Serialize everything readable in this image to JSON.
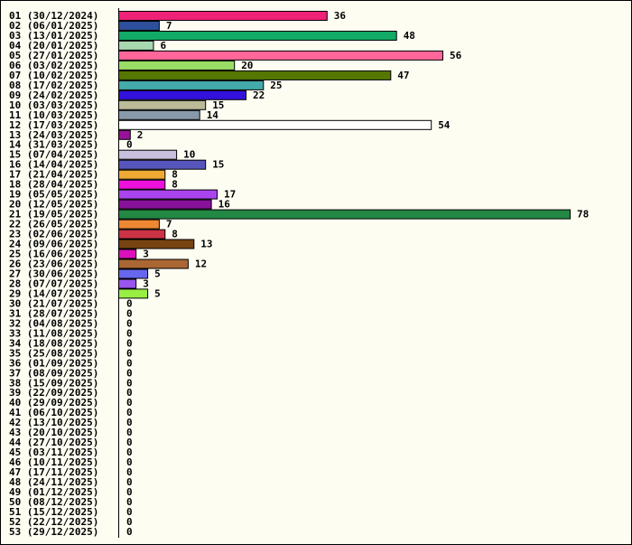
{
  "chart_data": {
    "type": "bar",
    "orientation": "horizontal",
    "title": "",
    "xlabel": "",
    "ylabel": "",
    "grid": false,
    "legend": "none",
    "xlim": [
      0,
      78
    ],
    "categories": [
      "01 (30/12/2024)",
      "02 (06/01/2025)",
      "03 (13/01/2025)",
      "04 (20/01/2025)",
      "05 (27/01/2025)",
      "06 (03/02/2025)",
      "07 (10/02/2025)",
      "08 (17/02/2025)",
      "09 (24/02/2025)",
      "10 (03/03/2025)",
      "11 (10/03/2025)",
      "12 (17/03/2025)",
      "13 (24/03/2025)",
      "14 (31/03/2025)",
      "15 (07/04/2025)",
      "16 (14/04/2025)",
      "17 (21/04/2025)",
      "18 (28/04/2025)",
      "19 (05/05/2025)",
      "20 (12/05/2025)",
      "21 (19/05/2025)",
      "22 (26/05/2025)",
      "23 (02/06/2025)",
      "24 (09/06/2025)",
      "25 (16/06/2025)",
      "26 (23/06/2025)",
      "27 (30/06/2025)",
      "28 (07/07/2025)",
      "29 (14/07/2025)",
      "30 (21/07/2025)",
      "31 (28/07/2025)",
      "32 (04/08/2025)",
      "33 (11/08/2025)",
      "34 (18/08/2025)",
      "35 (25/08/2025)",
      "36 (01/09/2025)",
      "37 (08/09/2025)",
      "38 (15/09/2025)",
      "39 (22/09/2025)",
      "40 (29/09/2025)",
      "41 (06/10/2025)",
      "42 (13/10/2025)",
      "43 (20/10/2025)",
      "44 (27/10/2025)",
      "45 (03/11/2025)",
      "46 (10/11/2025)",
      "47 (17/11/2025)",
      "48 (24/11/2025)",
      "49 (01/12/2025)",
      "50 (08/12/2025)",
      "51 (15/12/2025)",
      "52 (22/12/2025)",
      "53 (29/12/2025)"
    ],
    "values": [
      36,
      7,
      48,
      6,
      56,
      20,
      47,
      25,
      22,
      15,
      14,
      54,
      2,
      0,
      10,
      15,
      8,
      8,
      17,
      16,
      78,
      7,
      8,
      13,
      3,
      12,
      5,
      3,
      5,
      0,
      0,
      0,
      0,
      0,
      0,
      0,
      0,
      0,
      0,
      0,
      0,
      0,
      0,
      0,
      0,
      0,
      0,
      0,
      0,
      0,
      0,
      0,
      0
    ],
    "colors": [
      "#ee2277",
      "#2d4f9b",
      "#11aa66",
      "#a8d8b0",
      "#ff6699",
      "#99dd66",
      "#557700",
      "#44aaaa",
      "#3311dd",
      "#bbbb99",
      "#8899aa",
      "#ffffff",
      "#991199",
      "#ffffff",
      "#c8c0dd",
      "#5555bb",
      "#eeaa33",
      "#ee11dd",
      "#aa44ee",
      "#881199",
      "#228844",
      "#ee8833",
      "#cc3344",
      "#774411",
      "#dd11bb",
      "#aa6633",
      "#6666ee",
      "#9955ee",
      "#99ee44",
      "#ffffff",
      "#ffffff",
      "#ffffff",
      "#ffffff",
      "#ffffff",
      "#ffffff",
      "#ffffff",
      "#ffffff",
      "#ffffff",
      "#ffffff",
      "#ffffff",
      "#ffffff",
      "#ffffff",
      "#ffffff",
      "#ffffff",
      "#ffffff",
      "#ffffff",
      "#ffffff",
      "#ffffff",
      "#ffffff",
      "#ffffff",
      "#ffffff",
      "#ffffff",
      "#ffffff"
    ]
  }
}
